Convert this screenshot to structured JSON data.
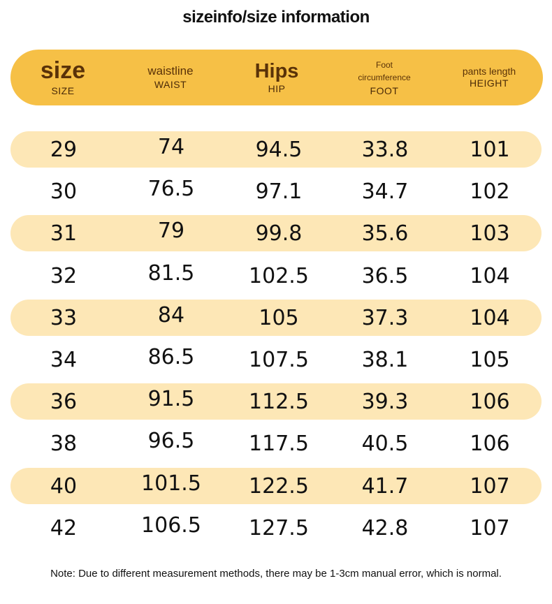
{
  "title": "sizeinfo/size information",
  "header": [
    {
      "main": "size",
      "sub": "SIZE"
    },
    {
      "main": "waistline",
      "sub": "WAIST"
    },
    {
      "main": "Hips",
      "sub": "HIP"
    },
    {
      "main": "Foot\ncircumference",
      "sub": "FOOT"
    },
    {
      "main": "pants length",
      "sub": "HEIGHT"
    }
  ],
  "rows": [
    [
      "29",
      "74",
      "94.5",
      "33.8",
      "101"
    ],
    [
      "30",
      "76.5",
      "97.1",
      "34.7",
      "102"
    ],
    [
      "31",
      "79",
      "99.8",
      "35.6",
      "103"
    ],
    [
      "32",
      "81.5",
      "102.5",
      "36.5",
      "104"
    ],
    [
      "33",
      "84",
      "105",
      "37.3",
      "104"
    ],
    [
      "34",
      "86.5",
      "107.5",
      "38.1",
      "105"
    ],
    [
      "36",
      "91.5",
      "112.5",
      "39.3",
      "106"
    ],
    [
      "38",
      "96.5",
      "117.5",
      "40.5",
      "106"
    ],
    [
      "40",
      "101.5",
      "122.5",
      "41.7",
      "107"
    ],
    [
      "42",
      "106.5",
      "127.5",
      "42.8",
      "107"
    ]
  ],
  "note": "Note: Due to different measurement methods, there may be 1-3cm manual error, which is normal.",
  "colors": {
    "header_bar": "#f6c046",
    "header_text": "#5a3208",
    "row_shade": "#fde7b6"
  }
}
